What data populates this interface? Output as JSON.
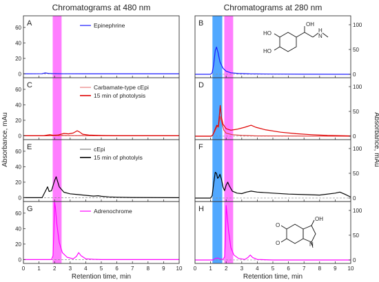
{
  "chart_data": {
    "type": "line",
    "column_titles": [
      "Chromatograms at 480 nm",
      "Chromatograms at 280 nm"
    ],
    "shared_xlabel": "Retention time, min",
    "left_ylabel": "Absorbance, mAu",
    "right_ylabel": "Absorbance, mAu",
    "xlim": [
      0,
      10
    ],
    "x_ticks": [
      0,
      1,
      2,
      3,
      4,
      5,
      6,
      7,
      8,
      9,
      10
    ],
    "left_ylim": [
      -5,
      75
    ],
    "left_y_ticks": [
      0,
      20,
      40,
      60
    ],
    "right_ylim": [
      -7,
      118
    ],
    "right_y_ticks": [
      0,
      50,
      100
    ],
    "highlight_bands": [
      {
        "name": "magenta",
        "color": "#ff66ff",
        "x0": 1.88,
        "x1": 2.45,
        "columns": [
          "left",
          "right"
        ]
      },
      {
        "name": "blue",
        "color": "#3399ff",
        "x0": 1.12,
        "x1": 1.75,
        "columns": [
          "right"
        ]
      }
    ],
    "panels": [
      {
        "letter": "A",
        "column": "left",
        "row": 0,
        "legend": [
          {
            "label": "Epinephrine",
            "color": "#1a1aff",
            "width": 1.2
          }
        ],
        "series": [
          {
            "color": "#1a1aff",
            "x": [
              0,
              1.2,
              1.4,
              1.6,
              1.8,
              2.5,
              4,
              10
            ],
            "y": [
              0,
              0.2,
              1.2,
              0.6,
              0.3,
              0.1,
              0,
              0
            ]
          }
        ]
      },
      {
        "letter": "B",
        "column": "right",
        "row": 0,
        "structure": "epinephrine",
        "series": [
          {
            "color": "#1a1aff",
            "x": [
              0,
              1.0,
              1.1,
              1.2,
              1.3,
              1.38,
              1.48,
              1.6,
              1.8,
              2.0,
              2.3,
              2.8,
              3.5,
              5,
              7,
              10
            ],
            "y": [
              0,
              0,
              3,
              20,
              48,
              55,
              44,
              25,
              12,
              6,
              3,
              1.5,
              0.8,
              0.3,
              0.1,
              0
            ]
          }
        ]
      },
      {
        "letter": "C",
        "column": "left",
        "row": 1,
        "legend": [
          {
            "label": "Carbamate-type cEpi",
            "color": "#e04040",
            "width": 0.8
          },
          {
            "label": "15 min of photolysis",
            "color": "#e00000",
            "width": 1.6
          }
        ],
        "series": [
          {
            "color": "#e04040",
            "x": [
              0,
              1.5,
              2,
              2.5,
              3,
              10
            ],
            "y": [
              0,
              0,
              0.3,
              0.3,
              0.2,
              0
            ]
          },
          {
            "color": "#e00000",
            "x": [
              0,
              1.3,
              1.5,
              1.7,
              1.9,
              2.2,
              2.6,
              2.9,
              3.2,
              3.45,
              3.6,
              3.8,
              4.2,
              5,
              6,
              10
            ],
            "y": [
              0,
              0,
              0.8,
              1.3,
              0.7,
              0.9,
              3,
              2.5,
              3.5,
              6.5,
              5,
              2,
              1,
              0.3,
              0,
              0
            ]
          }
        ]
      },
      {
        "letter": "D",
        "column": "right",
        "row": 1,
        "series": [
          {
            "color": "#e04040",
            "x": [
              0,
              1.05,
              1.15,
              1.3,
              1.42,
              1.5,
              1.6,
              1.72,
              1.85,
              2.0,
              2.4,
              3,
              4,
              10
            ],
            "y": [
              0,
              0,
              3,
              12,
              20,
              18,
              40,
              28,
              12,
              6,
              3,
              1.5,
              0.5,
              0
            ]
          },
          {
            "color": "#e00000",
            "x": [
              0,
              1.05,
              1.15,
              1.3,
              1.4,
              1.5,
              1.56,
              1.62,
              1.7,
              1.8,
              2.0,
              2.3,
              2.7,
              3.2,
              3.6,
              3.9,
              4.5,
              5.5,
              6.5,
              7.5,
              8.5,
              10
            ],
            "y": [
              0,
              0,
              3,
              15,
              22,
              20,
              42,
              62,
              38,
              24,
              15,
              12,
              14,
              18,
              22,
              18,
              13,
              8,
              5,
              3,
              1.5,
              0.5
            ]
          }
        ]
      },
      {
        "letter": "E",
        "column": "left",
        "row": 2,
        "legend": [
          {
            "label": "cEpi",
            "color": "#444444",
            "width": 0.8
          },
          {
            "label": "15 min of photolyis",
            "color": "#000000",
            "width": 1.6
          }
        ],
        "series": [
          {
            "color": "#000000",
            "x": [
              0,
              1.2,
              1.45,
              1.55,
              1.65,
              1.8,
              2.0,
              2.1,
              2.3,
              2.6,
              3,
              3.5,
              4,
              4.5,
              4.8,
              5,
              5.5,
              6,
              7,
              10
            ],
            "y": [
              0,
              0,
              10,
              14,
              8,
              9,
              22,
              27,
              14,
              7,
              5,
              4,
              3,
              2,
              2.5,
              1.8,
              1,
              0.6,
              0.2,
              0
            ]
          }
        ]
      },
      {
        "letter": "F",
        "column": "right",
        "row": 2,
        "series": [
          {
            "color": "#000000",
            "x": [
              0,
              1.0,
              1.1,
              1.2,
              1.3,
              1.38,
              1.45,
              1.52,
              1.6,
              1.7,
              1.8,
              1.9,
              2.0,
              2.1,
              2.2,
              2.4,
              2.7,
              3,
              3.3,
              3.6,
              4,
              5,
              6,
              7,
              8,
              9,
              9.3,
              9.6,
              10
            ],
            "y": [
              0,
              0,
              5,
              30,
              52,
              50,
              40,
              42,
              48,
              38,
              22,
              15,
              26,
              32,
              25,
              14,
              10,
              9,
              12,
              14,
              12,
              10,
              8,
              7,
              6,
              10,
              12,
              8,
              2
            ]
          }
        ]
      },
      {
        "letter": "G",
        "column": "left",
        "row": 3,
        "legend": [
          {
            "label": "Adrenochrome",
            "color": "#ff00ff",
            "width": 1.2
          }
        ],
        "series": [
          {
            "color": "#ff00ff",
            "x": [
              0,
              1.8,
              1.9,
              1.95,
              2.0,
              2.05,
              2.15,
              2.3,
              2.5,
              2.8,
              3.2,
              3.4,
              3.55,
              3.7,
              4,
              4.5,
              5,
              6,
              10
            ],
            "y": [
              0,
              0,
              5,
              35,
              74,
              68,
              45,
              22,
              9,
              3,
              1,
              4,
              9,
              5,
              1,
              0.3,
              0,
              0,
              0
            ]
          }
        ]
      },
      {
        "letter": "H",
        "column": "right",
        "row": 3,
        "structure": "adrenochrome",
        "series": [
          {
            "color": "#ff00ff",
            "x": [
              0,
              1.15,
              1.3,
              1.45,
              1.6,
              1.8,
              1.9,
              1.95,
              2.0,
              2.05,
              2.15,
              2.3,
              2.5,
              2.8,
              3.2,
              3.4,
              3.55,
              3.7,
              4,
              5,
              10
            ],
            "y": [
              0,
              0,
              3,
              4,
              2,
              1,
              6,
              40,
              110,
              95,
              60,
              25,
              10,
              3,
              1,
              5,
              10,
              5,
              1,
              0,
              0
            ]
          }
        ]
      }
    ]
  }
}
